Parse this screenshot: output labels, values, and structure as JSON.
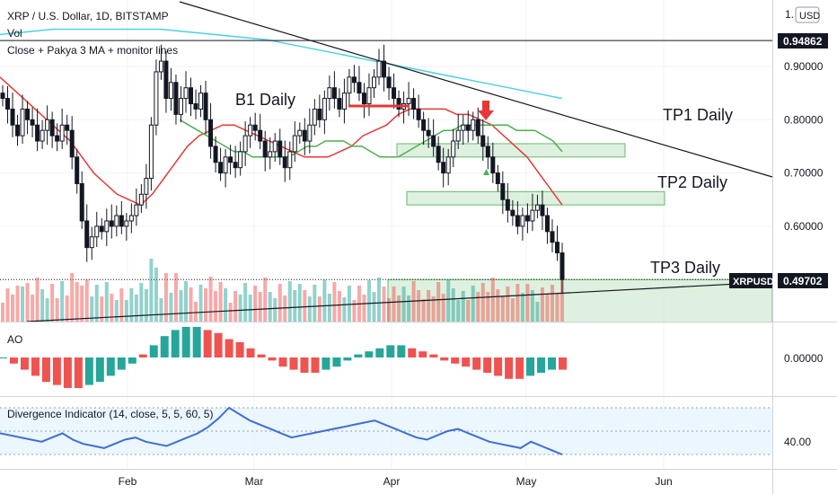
{
  "header": {
    "title": "XRP / U.S. Dollar, 1D, BITSTAMP",
    "vol_label": "Vol",
    "ma_label": "Close + Pakya 3 MA + monitor lines",
    "currency_button": "USD",
    "scale_top": "1."
  },
  "annotations": {
    "b1": "B1 Daily",
    "tp1": "TP1 Daily",
    "tp2": "TP2 Daily",
    "tp3": "TP3 Daily"
  },
  "price_axis": {
    "ticks": [
      "0.90000",
      "0.80000",
      "0.70000",
      "0.60000"
    ],
    "hline_label": "0.94862",
    "current_symbol": "XRPUSD",
    "current_value": "0.49702"
  },
  "ao_panel": {
    "label": "AO",
    "tick": "0.00000"
  },
  "div_panel": {
    "label": "Divergence Indicator (14, close, 5, 5, 60, 5)",
    "tick": "40.00"
  },
  "x_axis": {
    "labels": [
      "Feb",
      "Mar",
      "Apr",
      "May",
      "Jun"
    ]
  },
  "colors": {
    "up": "#26a69a",
    "down": "#ef5350",
    "candle": "#131722",
    "ma_red": "#e53935",
    "ma_green": "#4caf50",
    "ma_cyan": "#4dd0e1",
    "zone_fill": "#c8e6c9",
    "zone_border": "#66bb6a",
    "divergence": "#3d6fd1",
    "arrow": "#e53935"
  },
  "chart_data": {
    "type": "candlestick",
    "title": "XRP / U.S. Dollar, 1D, BITSTAMP",
    "x_range": [
      "2021-01-10",
      "2021-06-25"
    ],
    "price_range": [
      0.42,
      1.0
    ],
    "close": [
      0.84,
      0.82,
      0.79,
      0.77,
      0.82,
      0.8,
      0.79,
      0.76,
      0.78,
      0.8,
      0.77,
      0.76,
      0.79,
      0.78,
      0.73,
      0.68,
      0.61,
      0.56,
      0.58,
      0.6,
      0.59,
      0.61,
      0.6,
      0.62,
      0.6,
      0.61,
      0.62,
      0.64,
      0.66,
      0.69,
      0.79,
      0.89,
      0.91,
      0.84,
      0.87,
      0.81,
      0.84,
      0.86,
      0.83,
      0.82,
      0.85,
      0.8,
      0.75,
      0.72,
      0.7,
      0.73,
      0.72,
      0.71,
      0.74,
      0.77,
      0.79,
      0.78,
      0.76,
      0.73,
      0.74,
      0.76,
      0.73,
      0.71,
      0.74,
      0.77,
      0.78,
      0.76,
      0.79,
      0.82,
      0.8,
      0.84,
      0.86,
      0.84,
      0.82,
      0.85,
      0.88,
      0.87,
      0.85,
      0.83,
      0.86,
      0.88,
      0.91,
      0.88,
      0.86,
      0.84,
      0.82,
      0.83,
      0.84,
      0.82,
      0.8,
      0.78,
      0.77,
      0.75,
      0.72,
      0.7,
      0.73,
      0.76,
      0.78,
      0.79,
      0.78,
      0.8,
      0.77,
      0.75,
      0.73,
      0.7,
      0.68,
      0.65,
      0.63,
      0.62,
      0.6,
      0.62,
      0.61,
      0.63,
      0.64,
      0.62,
      0.59,
      0.57,
      0.55,
      0.5
    ],
    "series": [
      {
        "name": "",
        "color": "red",
        "values": [
          0.88,
          0.86,
          0.84,
          0.82,
          0.8,
          0.78,
          0.76,
          0.73,
          0.7,
          0.68,
          0.66,
          0.65,
          0.64,
          0.66,
          0.69,
          0.72,
          0.75,
          0.77,
          0.78,
          0.79,
          0.79,
          0.78,
          0.77,
          0.76,
          0.75,
          0.74,
          0.73,
          0.73,
          0.73,
          0.74,
          0.75,
          0.77,
          0.78,
          0.79,
          0.81,
          0.82,
          0.82,
          0.82,
          0.82,
          0.81,
          0.81,
          0.8,
          0.79,
          0.77,
          0.75,
          0.73,
          0.7,
          0.67,
          0.64
        ]
      },
      {
        "name": "",
        "color": "green",
        "values": [
          0.8,
          0.79,
          0.78,
          0.77,
          0.76,
          0.75,
          0.74,
          0.74,
          0.73,
          0.73,
          0.73,
          0.73,
          0.73,
          0.74,
          0.75,
          0.75,
          0.76,
          0.76,
          0.76,
          0.75,
          0.75,
          0.74,
          0.73,
          0.73,
          0.73,
          0.74,
          0.75,
          0.76,
          0.77,
          0.78,
          0.78,
          0.79,
          0.79,
          0.79,
          0.79,
          0.79,
          0.79,
          0.78,
          0.78,
          0.78,
          0.77,
          0.76,
          0.74
        ]
      },
      {
        "name": "",
        "color": "cyan",
        "values": [
          0.96,
          0.965,
          0.97,
          0.97,
          0.97,
          0.97,
          0.97,
          0.965,
          0.96,
          0.955,
          0.95,
          0.94,
          0.93,
          0.92,
          0.91,
          0.9,
          0.89,
          0.88,
          0.87,
          0.86,
          0.85,
          0.84
        ]
      }
    ],
    "horizontal_line": 0.94862,
    "current_price": 0.49702,
    "zones": [
      {
        "label": "TP1 Daily",
        "low": 0.73,
        "high": 0.755
      },
      {
        "label": "TP2 Daily",
        "low": 0.64,
        "high": 0.665
      },
      {
        "label": "TP3 Daily",
        "low": 0.42,
        "high": 0.5
      }
    ],
    "ao": [
      0.0,
      -0.02,
      -0.04,
      -0.06,
      -0.08,
      -0.09,
      -0.1,
      -0.1,
      -0.09,
      -0.08,
      -0.06,
      -0.04,
      -0.02,
      0.01,
      0.04,
      0.07,
      0.09,
      0.1,
      0.1,
      0.09,
      0.08,
      0.06,
      0.05,
      0.03,
      0.01,
      -0.01,
      -0.03,
      -0.04,
      -0.05,
      -0.05,
      -0.04,
      -0.03,
      -0.01,
      0.01,
      0.02,
      0.03,
      0.04,
      0.04,
      0.03,
      0.02,
      0.01,
      -0.01,
      -0.02,
      -0.03,
      -0.04,
      -0.05,
      -0.06,
      -0.07,
      -0.07,
      -0.06,
      -0.05,
      -0.04,
      -0.04
    ],
    "divergence": [
      38,
      37,
      36,
      35,
      34,
      36,
      38,
      35,
      33,
      32,
      31,
      33,
      35,
      36,
      34,
      33,
      32,
      34,
      36,
      38,
      41,
      45,
      50,
      47,
      44,
      42,
      40,
      38,
      36,
      37,
      38,
      39,
      40,
      41,
      42,
      43,
      44,
      42,
      40,
      38,
      36,
      35,
      37,
      39,
      40,
      38,
      36,
      34,
      33,
      32,
      31,
      34,
      32,
      30,
      28
    ]
  }
}
